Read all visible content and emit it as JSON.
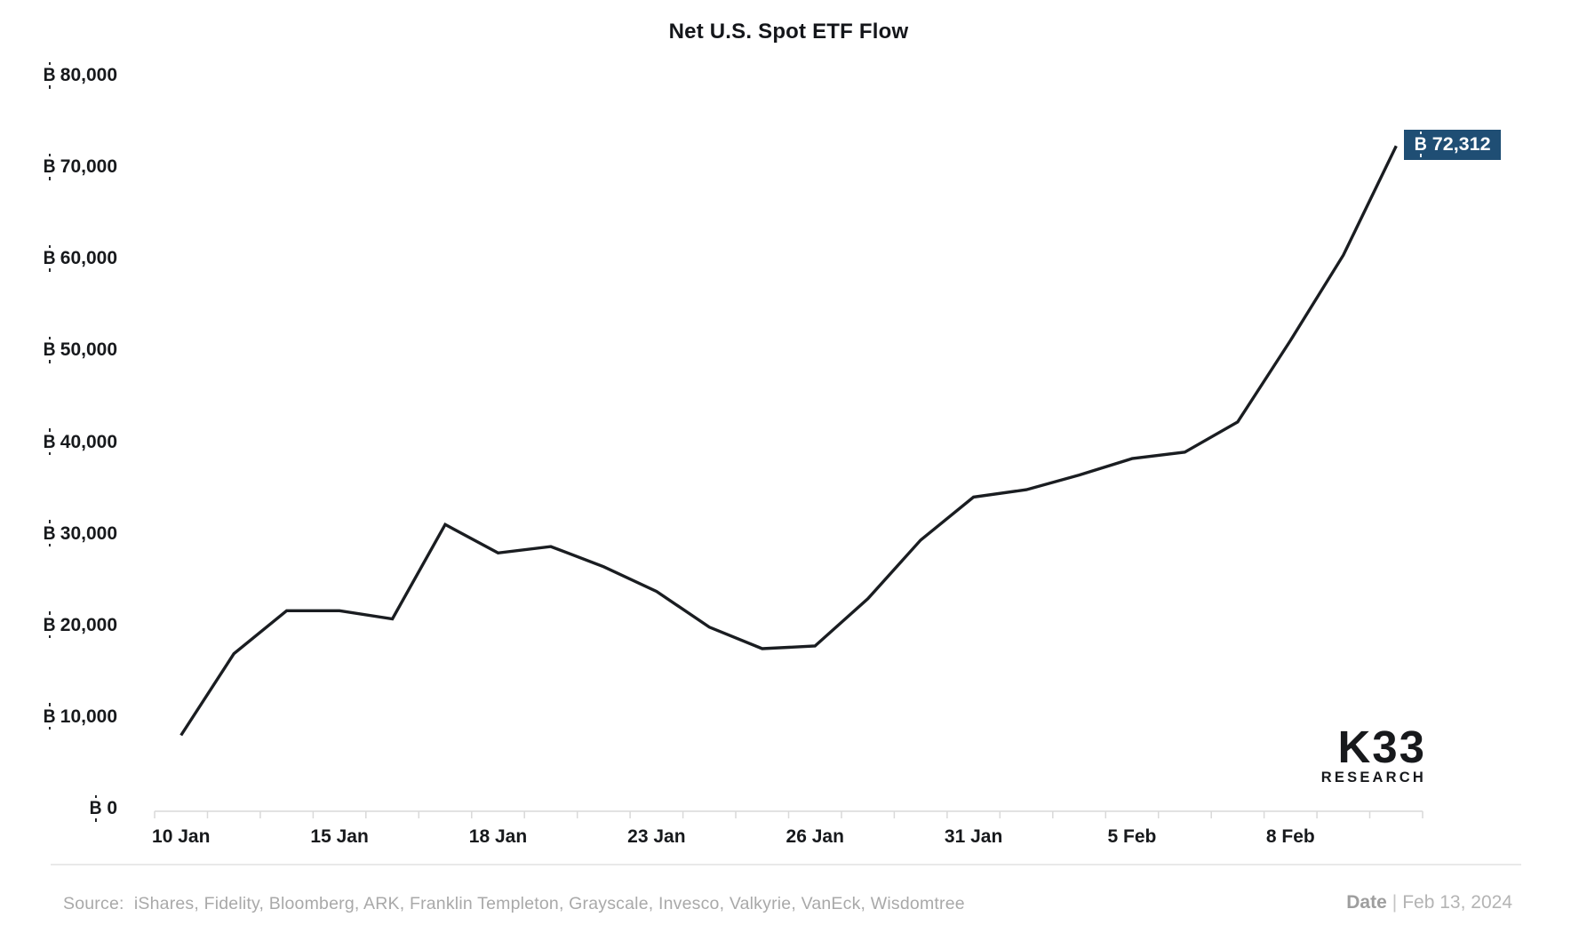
{
  "chart_data": {
    "type": "line",
    "title": "Net U.S. Spot ETF Flow",
    "currency_symbol": "bitcoin",
    "categories": [
      "10 Jan",
      "11 Jan",
      "12 Jan",
      "15 Jan",
      "16 Jan",
      "17 Jan",
      "18 Jan",
      "19 Jan",
      "22 Jan",
      "23 Jan",
      "24 Jan",
      "25 Jan",
      "26 Jan",
      "29 Jan",
      "30 Jan",
      "31 Jan",
      "1 Feb",
      "2 Feb",
      "5 Feb",
      "6 Feb",
      "7 Feb",
      "8 Feb",
      "9 Feb",
      "12 Feb"
    ],
    "values": [
      8000,
      16900,
      21600,
      21600,
      20700,
      31000,
      27900,
      28600,
      26400,
      23700,
      19800,
      17450,
      17750,
      22900,
      29300,
      34000,
      34800,
      36400,
      38200,
      38900,
      42200,
      51100,
      60400,
      72312
    ],
    "visible_x_labels": [
      "10 Jan",
      "15 Jan",
      "18 Jan",
      "23 Jan",
      "26 Jan",
      "31 Jan",
      "5 Feb",
      "8 Feb"
    ],
    "x_label_indices": [
      0,
      3,
      6,
      9,
      12,
      15,
      18,
      21
    ],
    "y_ticks": [
      80000,
      70000,
      60000,
      50000,
      40000,
      30000,
      20000,
      10000,
      0
    ],
    "ylim": [
      0,
      80000
    ],
    "grid": false,
    "legend": "none",
    "line_color": "#1a1d21",
    "axis_color": "#d9d9d9",
    "end_label": {
      "value": "72,312",
      "bg": "#1F4E74",
      "text_color": "#ffffff"
    }
  },
  "logo": {
    "line1": "K33",
    "line2": "RESEARCH"
  },
  "footer": {
    "source_label": "Source:",
    "source_text": "iShares, Fidelity, Bloomberg, ARK, Franklin Templeton, Grayscale, Invesco, Valkyrie, VanEck, Wisdomtree",
    "date_label": "Date",
    "date_separator": "|",
    "date_value": "Feb 13, 2024"
  }
}
